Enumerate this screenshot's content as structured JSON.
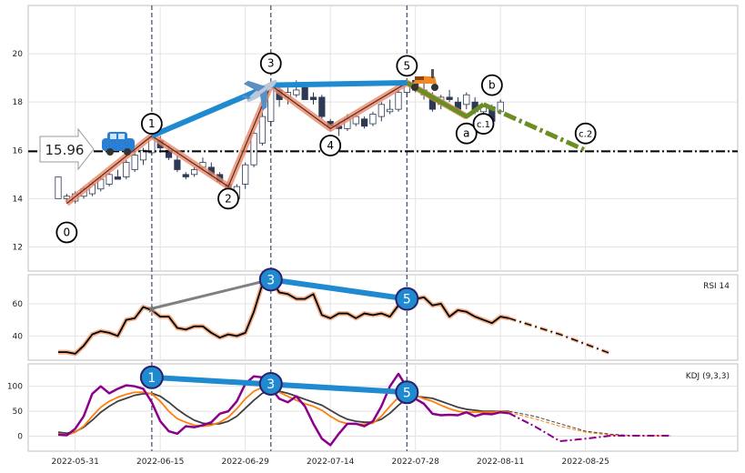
{
  "chart_data": {
    "type": "candlestick",
    "title": "",
    "x_tick_labels": [
      "2022-05-31",
      "2022-06-15",
      "2022-06-29",
      "2022-07-14",
      "2022-07-28",
      "2022-08-11",
      "2022-08-25"
    ],
    "price_panel": {
      "ylim": [
        11,
        22
      ],
      "y_ticks": [
        "12",
        "14",
        "16",
        "18",
        "20"
      ],
      "reference_line": {
        "value": 15.96,
        "label": "15.96"
      },
      "candles": [
        [
          0,
          14.0,
          14.9,
          14.0,
          14.9
        ],
        [
          1,
          14.0,
          14.2,
          13.8,
          14.1
        ],
        [
          2,
          13.9,
          14.3,
          13.8,
          14.2
        ],
        [
          3,
          14.1,
          14.5,
          14.0,
          14.4
        ],
        [
          4,
          14.2,
          14.7,
          14.1,
          14.6
        ],
        [
          5,
          14.4,
          14.9,
          14.3,
          14.8
        ],
        [
          6,
          14.6,
          15.1,
          14.5,
          15.0
        ],
        [
          7,
          14.9,
          15.2,
          14.8,
          14.8
        ],
        [
          8,
          14.9,
          15.6,
          14.8,
          15.5
        ],
        [
          9,
          15.2,
          15.9,
          15.1,
          15.8
        ],
        [
          10,
          15.6,
          16.1,
          15.4,
          16.0
        ],
        [
          11,
          15.9,
          16.7,
          15.8,
          16.5
        ],
        [
          12,
          16.4,
          16.6,
          15.9,
          16.1
        ],
        [
          13,
          16.0,
          16.2,
          15.6,
          15.7
        ],
        [
          14,
          15.6,
          15.8,
          15.1,
          15.2
        ],
        [
          15,
          15.0,
          15.1,
          14.8,
          14.9
        ],
        [
          16,
          15.0,
          15.3,
          14.9,
          15.2
        ],
        [
          17,
          15.3,
          15.7,
          15.2,
          15.5
        ],
        [
          18,
          15.3,
          15.5,
          14.9,
          15.0
        ],
        [
          19,
          15.0,
          15.1,
          14.6,
          14.7
        ],
        [
          20,
          14.6,
          14.7,
          13.9,
          14.0
        ],
        [
          21,
          14.0,
          14.6,
          13.9,
          14.5
        ],
        [
          22,
          14.6,
          15.5,
          14.4,
          15.4
        ],
        [
          23,
          15.4,
          16.8,
          15.3,
          16.7
        ],
        [
          24,
          16.3,
          17.6,
          16.2,
          17.4
        ],
        [
          25,
          17.2,
          18.7,
          17.0,
          18.6
        ],
        [
          26,
          18.5,
          18.7,
          17.8,
          18.1
        ],
        [
          27,
          18.2,
          18.6,
          17.9,
          18.4
        ],
        [
          28,
          18.3,
          18.9,
          18.2,
          18.5
        ],
        [
          29,
          18.6,
          18.7,
          18.1,
          18.1
        ],
        [
          30,
          18.2,
          18.4,
          17.9,
          18.1
        ],
        [
          31,
          18.2,
          18.3,
          17.3,
          17.4
        ],
        [
          32,
          17.2,
          17.3,
          16.8,
          17.0
        ],
        [
          33,
          17.0,
          17.2,
          16.6,
          16.9
        ],
        [
          34,
          16.9,
          17.5,
          16.8,
          17.3
        ],
        [
          35,
          17.1,
          17.5,
          17.0,
          17.4
        ],
        [
          36,
          17.3,
          17.4,
          16.9,
          17.0
        ],
        [
          37,
          17.1,
          17.6,
          17.0,
          17.5
        ],
        [
          38,
          17.4,
          18.0,
          17.2,
          17.9
        ],
        [
          39,
          17.6,
          18.1,
          17.5,
          17.7
        ],
        [
          40,
          17.7,
          18.5,
          17.6,
          18.4
        ],
        [
          41,
          18.4,
          18.9,
          18.2,
          18.8
        ],
        [
          42,
          18.9,
          18.9,
          18.4,
          18.5
        ],
        [
          43,
          18.5,
          18.8,
          18.1,
          18.3
        ],
        [
          44,
          18.2,
          18.4,
          17.6,
          17.7
        ],
        [
          45,
          17.9,
          18.3,
          17.7,
          18.2
        ],
        [
          46,
          18.2,
          18.5,
          18.0,
          18.1
        ],
        [
          47,
          18.0,
          18.2,
          17.6,
          17.7
        ],
        [
          48,
          17.9,
          18.4,
          17.7,
          18.3
        ],
        [
          49,
          18.0,
          18.2,
          17.5,
          17.6
        ],
        [
          50,
          17.6,
          17.9,
          17.3,
          17.8
        ],
        [
          51,
          17.8,
          17.9,
          17.1,
          17.2
        ],
        [
          52,
          17.6,
          18.1,
          17.5,
          18.0
        ]
      ],
      "wave_labels": [
        {
          "label": "0",
          "index": 1,
          "value": 12.6
        },
        {
          "label": "1",
          "index": 11,
          "value": 17.1
        },
        {
          "label": "2",
          "index": 20,
          "value": 14.0
        },
        {
          "label": "3",
          "index": 25,
          "value": 19.6
        },
        {
          "label": "4",
          "index": 32,
          "value": 16.2
        },
        {
          "label": "5",
          "index": 41,
          "value": 19.5
        },
        {
          "label": "a",
          "index": 48,
          "value": 16.7
        },
        {
          "label": "c.1",
          "index": 50,
          "value": 17.1
        },
        {
          "label": "b",
          "index": 51,
          "value": 18.7
        },
        {
          "label": "c.2",
          "index": 62,
          "value": 16.7
        }
      ],
      "wave_path": [
        [
          1,
          13.8
        ],
        [
          11,
          16.6
        ],
        [
          20,
          14.5
        ],
        [
          25,
          18.7
        ],
        [
          32,
          16.9
        ],
        [
          41,
          18.8
        ],
        [
          48,
          17.4
        ],
        [
          50,
          17.9
        ],
        [
          62,
          16.0
        ]
      ],
      "trend_line": [
        [
          11,
          16.6
        ],
        [
          25,
          18.7
        ],
        [
          41,
          18.8
        ]
      ],
      "vertical_marker_indices": [
        11,
        25,
        41
      ]
    },
    "rsi_panel": {
      "label": "RSI 14",
      "ylim": [
        25,
        78
      ],
      "y_ticks": [
        "40",
        "60"
      ],
      "values": [
        30,
        30,
        29,
        34,
        41,
        43,
        42,
        40,
        50,
        51,
        58,
        56,
        52,
        52,
        45,
        44,
        46,
        46,
        42,
        39,
        41,
        40,
        42,
        55,
        72,
        75,
        67,
        66,
        63,
        63,
        66,
        53,
        51,
        54,
        54,
        51,
        54,
        53,
        54,
        52,
        59,
        60,
        63,
        64,
        59,
        60,
        52,
        56,
        55,
        52,
        50,
        48,
        52,
        51
      ],
      "forecast": [
        [
          53,
          51
        ],
        [
          56,
          46
        ],
        [
          59,
          41
        ],
        [
          62,
          35
        ],
        [
          65,
          29
        ]
      ],
      "divergence_points": [
        {
          "label": "3",
          "index": 25,
          "value": 75
        },
        {
          "label": "5",
          "index": 41,
          "value": 63
        }
      ],
      "gray_line": [
        [
          11,
          57
        ],
        [
          25,
          75
        ]
      ]
    },
    "kdj_panel": {
      "label": "KDJ (9,3,3)",
      "ylim": [
        -30,
        145
      ],
      "y_ticks": [
        "0",
        "50",
        "100"
      ],
      "k": [
        5,
        2,
        8,
        20,
        40,
        58,
        70,
        78,
        84,
        88,
        88,
        85,
        70,
        50,
        35,
        28,
        22,
        20,
        22,
        28,
        38,
        55,
        75,
        90,
        98,
        96,
        88,
        80,
        72,
        65,
        60,
        52,
        40,
        30,
        25,
        24,
        24,
        26,
        40,
        60,
        78,
        85,
        82,
        75,
        70,
        62,
        55,
        50,
        48,
        48,
        48,
        48,
        50,
        48
      ],
      "d": [
        8,
        6,
        9,
        18,
        32,
        48,
        60,
        70,
        76,
        82,
        85,
        86,
        80,
        68,
        54,
        42,
        32,
        26,
        24,
        25,
        30,
        40,
        56,
        72,
        86,
        92,
        90,
        86,
        80,
        74,
        68,
        62,
        52,
        42,
        34,
        30,
        28,
        28,
        34,
        46,
        62,
        76,
        80,
        78,
        76,
        70,
        64,
        58,
        54,
        52,
        50,
        50,
        50,
        50
      ],
      "j": [
        3,
        2,
        15,
        40,
        85,
        100,
        86,
        95,
        102,
        100,
        95,
        68,
        30,
        10,
        5,
        20,
        18,
        22,
        28,
        45,
        50,
        70,
        105,
        120,
        118,
        96,
        75,
        68,
        80,
        60,
        25,
        -5,
        -18,
        5,
        25,
        25,
        20,
        30,
        60,
        100,
        125,
        98,
        75,
        65,
        45,
        42,
        43,
        42,
        48,
        40,
        45,
        44,
        48,
        46
      ],
      "forecast_k": [
        [
          53,
          48
        ],
        [
          56,
          35
        ],
        [
          59,
          20
        ],
        [
          62,
          8
        ],
        [
          65,
          2
        ],
        [
          68,
          1
        ],
        [
          72,
          1
        ]
      ],
      "forecast_d": [
        [
          53,
          50
        ],
        [
          56,
          40
        ],
        [
          59,
          25
        ],
        [
          62,
          10
        ],
        [
          65,
          4
        ],
        [
          68,
          1
        ],
        [
          72,
          1
        ]
      ],
      "forecast_j": [
        [
          53,
          46
        ],
        [
          56,
          20
        ],
        [
          59,
          -10
        ],
        [
          62,
          -5
        ],
        [
          65,
          1
        ],
        [
          68,
          1
        ],
        [
          72,
          1
        ]
      ],
      "divergence_points": [
        {
          "label": "1",
          "index": 11,
          "value": 118
        },
        {
          "label": "3",
          "index": 25,
          "value": 105
        },
        {
          "label": "5",
          "index": 41,
          "value": 88
        }
      ],
      "colors": {
        "k": "#ff7f0e",
        "d": "#404040",
        "j": "#8b008b"
      }
    },
    "series_colors": {
      "up_candle": "#ffffff",
      "down_candle": "#2e3a55",
      "wave": "#e8886a",
      "trend": "#1f8ad0",
      "correction": "#6b8e23",
      "reference": "#000000",
      "gray_line": "#808080"
    }
  }
}
